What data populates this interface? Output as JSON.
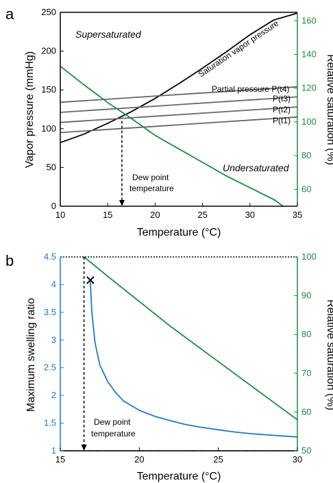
{
  "chart_data": [
    {
      "panel": "a",
      "type": "line",
      "xlabel": "Temperature (°C)",
      "ylabel": "Vapor pressure (mmHg)",
      "y2label": "Relative saturation (%)",
      "xlim": [
        10,
        35
      ],
      "ylim": [
        0,
        250
      ],
      "y2lim": [
        50,
        165
      ],
      "xticks": [
        10,
        15,
        20,
        25,
        30,
        35
      ],
      "yticks": [
        0,
        50,
        100,
        150,
        200,
        250
      ],
      "y2ticks": [
        60,
        80,
        100,
        120,
        140,
        160
      ],
      "series": [
        {
          "name": "Saturation vapor pressure",
          "axis": "left",
          "color": "#000000",
          "x": [
            10,
            12.5,
            15,
            17.5,
            20,
            22.5,
            25,
            27.5,
            30,
            32.5,
            35
          ],
          "y": [
            82,
            93,
            107,
            122,
            139,
            158,
            178,
            199,
            221,
            240,
            249
          ]
        },
        {
          "name": "Partial pressure P(t4)",
          "axis": "left",
          "color": "#666666",
          "x": [
            10,
            35
          ],
          "y": [
            134,
            154
          ]
        },
        {
          "name": "P(t3)",
          "axis": "left",
          "color": "#666666",
          "x": [
            10,
            35
          ],
          "y": [
            121,
            141
          ]
        },
        {
          "name": "P(t2)",
          "axis": "left",
          "color": "#666666",
          "x": [
            10,
            35
          ],
          "y": [
            108,
            128
          ]
        },
        {
          "name": "P(t1)",
          "axis": "left",
          "color": "#666666",
          "x": [
            10,
            35
          ],
          "y": [
            95,
            115
          ]
        },
        {
          "name": "",
          "axis": "right",
          "color": "#1a8a3a",
          "x": [
            10,
            12.5,
            15,
            17.5,
            20,
            22.5,
            25,
            27.5,
            30,
            32.5,
            33.5
          ],
          "y": [
            133,
            122,
            111.5,
            102,
            92,
            84,
            76,
            68,
            61,
            54,
            50
          ]
        }
      ],
      "dew_point_x": 16.5,
      "dew_point_y": 110,
      "annotations": {
        "supersaturated": "Supersaturated",
        "undersaturated": "Undersaturated",
        "saturation_label": "Saturation vapor pressure",
        "p4": "Partial pressure P(t4)",
        "p3": "P(t3)",
        "p2": "P(t2)",
        "p1": "P(t1)",
        "dew1": "Dew point",
        "dew2": "temperature"
      }
    },
    {
      "panel": "b",
      "type": "line",
      "xlabel": "Temperature (°C)",
      "ylabel": "Maximum swelling ratio",
      "y2label": "Relative saturation (%)",
      "xlim": [
        15,
        30
      ],
      "ylim": [
        1,
        4.5
      ],
      "y2lim": [
        50,
        100
      ],
      "xticks": [
        15,
        20,
        25,
        30
      ],
      "yticks": [
        1,
        1.5,
        2,
        2.5,
        3,
        3.5,
        4,
        4.5
      ],
      "y2ticks": [
        50,
        60,
        70,
        80,
        90,
        100
      ],
      "series": [
        {
          "name": "",
          "axis": "left",
          "color": "#1f78c8",
          "x": [
            16.9,
            17.0,
            17.2,
            17.5,
            18.0,
            18.5,
            19.0,
            20.0,
            21.0,
            22.0,
            23.0,
            24.0,
            25.0,
            26.0,
            27.0,
            28.0,
            29.0,
            30.0
          ],
          "y": [
            4.05,
            3.5,
            2.95,
            2.55,
            2.25,
            2.05,
            1.9,
            1.73,
            1.62,
            1.54,
            1.47,
            1.42,
            1.38,
            1.34,
            1.31,
            1.29,
            1.27,
            1.25
          ]
        },
        {
          "name": "",
          "axis": "right",
          "color": "#1a8a3a",
          "x": [
            16.5,
            18,
            20,
            22,
            24,
            26,
            28,
            30
          ],
          "y": [
            100,
            95,
            88.5,
            82,
            76,
            70,
            64,
            58
          ]
        }
      ],
      "x_marker": {
        "x": 16.9,
        "y": 4.08
      },
      "dew_point_x": 16.5,
      "annotations": {
        "dew1": "Dew point",
        "dew2": "temperature"
      }
    }
  ]
}
